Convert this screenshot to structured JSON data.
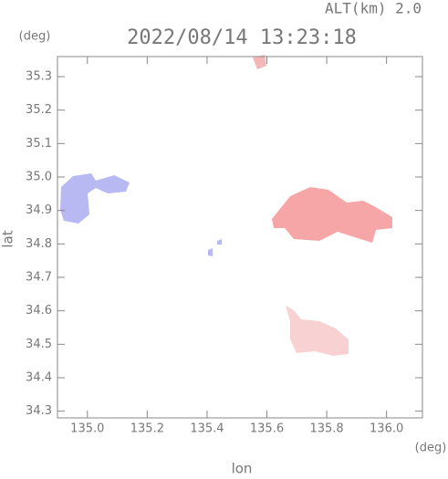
{
  "chart_data": {
    "type": "map",
    "title": "2022/08/14 13:23:18",
    "subtitle": "ALT(km) 2.0",
    "x_label": "lon",
    "y_label": "lat",
    "x_unit": "(deg)",
    "y_unit": "(deg)",
    "xlim": [
      134.9,
      136.12
    ],
    "ylim": [
      34.28,
      35.36
    ],
    "xticks": [
      {
        "value": 135.0,
        "label": "135.0"
      },
      135.2,
      135.4,
      135.6,
      135.8,
      {
        "value": 136.0,
        "label": "136.0"
      }
    ],
    "yticks": [
      34.3,
      34.4,
      34.5,
      34.6,
      34.7,
      34.8,
      34.9,
      {
        "value": 35.0,
        "label": "35.0"
      },
      35.1,
      35.2,
      35.3
    ]
  }
}
